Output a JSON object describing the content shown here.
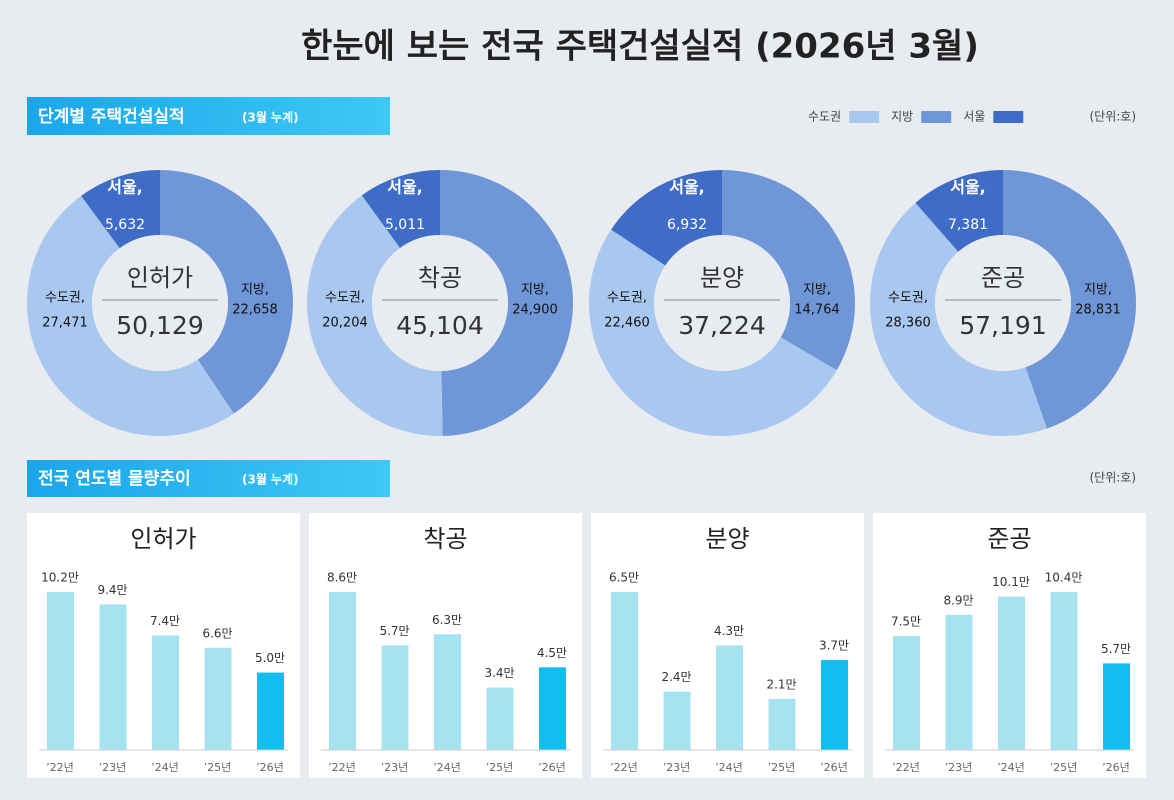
{
  "header": {
    "title": "한눈에 보는 전국 주택건설실적  (2026년 3월)"
  },
  "sections": [
    {
      "label": "단계별 주택건설실적",
      "sub": "(3월 누계)"
    },
    {
      "label": "전국 연도별 물량추이",
      "sub": "(3월 누계)"
    }
  ],
  "legend": {
    "items": [
      {
        "name": "수도권",
        "color": "#a9c8f0"
      },
      {
        "name": "지방",
        "color": "#6f97d8"
      },
      {
        "name": "서울",
        "color": "#3f6cc7"
      }
    ],
    "unit": "(단위:호)"
  },
  "bar_unit": "(단위:호)",
  "chart_data": [
    {
      "type": "donut",
      "center_label": "인허가",
      "total": {
        "value": 50129,
        "label": "50,129"
      },
      "categories": [
        "지방,",
        "수도권,",
        "서울,"
      ],
      "values": [
        22658,
        27471,
        5632
      ],
      "value_labels": [
        "22,658",
        "27,471",
        "5,632"
      ],
      "colors": [
        "#6f97d8",
        "#a9c8f0",
        "#3f6cc7"
      ]
    },
    {
      "type": "donut",
      "center_label": "착공",
      "total": {
        "value": 45104,
        "label": "45,104"
      },
      "categories": [
        "지방,",
        "수도권,",
        "서울,"
      ],
      "values": [
        24900,
        20204,
        5011
      ],
      "value_labels": [
        "24,900",
        "20,204",
        "5,011"
      ],
      "colors": [
        "#6f97d8",
        "#a9c8f0",
        "#3f6cc7"
      ]
    },
    {
      "type": "donut",
      "center_label": "분양",
      "total": {
        "value": 37224,
        "label": "37,224"
      },
      "categories": [
        "지방,",
        "수도권,",
        "서울,"
      ],
      "values": [
        14764,
        22460,
        6932
      ],
      "value_labels": [
        "14,764",
        "22,460",
        "6,932"
      ],
      "colors": [
        "#6f97d8",
        "#a9c8f0",
        "#3f6cc7"
      ]
    },
    {
      "type": "donut",
      "center_label": "준공",
      "total": {
        "value": 57191,
        "label": "57,191"
      },
      "categories": [
        "지방,",
        "수도권,",
        "서울,"
      ],
      "values": [
        28831,
        28360,
        7381
      ],
      "value_labels": [
        "28,831",
        "28,360",
        "7,381"
      ],
      "colors": [
        "#6f97d8",
        "#a9c8f0",
        "#3f6cc7"
      ]
    },
    {
      "type": "bar",
      "title": "인허가",
      "categories": [
        "’22년",
        "’23년",
        "’24년",
        "’25년",
        "’26년"
      ],
      "values": [
        10.2,
        9.4,
        7.4,
        6.6,
        5.0
      ],
      "value_labels": [
        "10.2만",
        "9.4만",
        "7.4만",
        "6.6만",
        "5.0만"
      ],
      "colors": [
        "#a6e3f0",
        "#a6e3f0",
        "#a6e3f0",
        "#a6e3f0",
        "#12bdf0"
      ]
    },
    {
      "type": "bar",
      "title": "착공",
      "categories": [
        "’22년",
        "’23년",
        "’24년",
        "’25년",
        "’26년"
      ],
      "values": [
        8.6,
        5.7,
        6.3,
        3.4,
        4.5
      ],
      "value_labels": [
        "8.6만",
        "5.7만",
        "6.3만",
        "3.4만",
        "4.5만"
      ],
      "colors": [
        "#a6e3f0",
        "#a6e3f0",
        "#a6e3f0",
        "#a6e3f0",
        "#12bdf0"
      ]
    },
    {
      "type": "bar",
      "title": "분양",
      "categories": [
        "’22년",
        "’23년",
        "’24년",
        "’25년",
        "’26년"
      ],
      "values": [
        6.5,
        2.4,
        4.3,
        2.1,
        3.7
      ],
      "value_labels": [
        "6.5만",
        "2.4만",
        "4.3만",
        "2.1만",
        "3.7만"
      ],
      "colors": [
        "#a6e3f0",
        "#a6e3f0",
        "#a6e3f0",
        "#a6e3f0",
        "#12bdf0"
      ]
    },
    {
      "type": "bar",
      "title": "준공",
      "categories": [
        "’22년",
        "’23년",
        "’24년",
        "’25년",
        "’26년"
      ],
      "values": [
        7.5,
        8.9,
        10.1,
        10.4,
        5.7
      ],
      "value_labels": [
        "7.5만",
        "8.9만",
        "10.1만",
        "10.4만",
        "5.7만"
      ],
      "colors": [
        "#a6e3f0",
        "#a6e3f0",
        "#a6e3f0",
        "#a6e3f0",
        "#12bdf0"
      ]
    }
  ]
}
